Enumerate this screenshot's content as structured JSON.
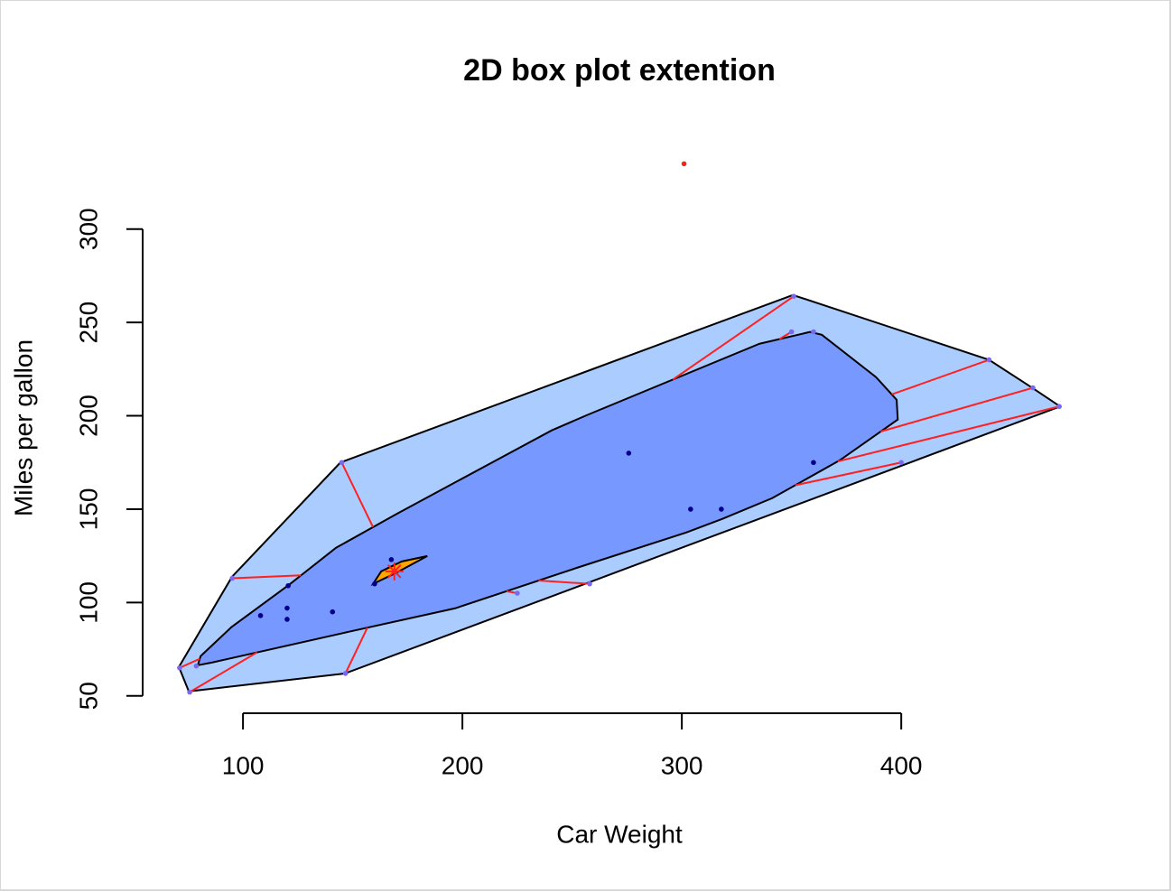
{
  "chart_data": {
    "type": "bagplot",
    "title": "2D box plot extention",
    "x_label": "Car Weight",
    "y_label": "Miles per gallon",
    "xlim": [
      55.1,
      488
    ],
    "ylim": [
      40.7,
      346.3
    ],
    "xticks": [
      100,
      200,
      300,
      400
    ],
    "yticks": [
      50,
      100,
      150,
      200,
      250,
      300
    ],
    "loop_color": "#aaccff",
    "bag_color": "#7799ff",
    "median_color": "#ffa500",
    "line_color": "#ff2020",
    "in_bag_color": "#00008b",
    "in_loop_color": "#7b68ee",
    "outlier_color": "#ff2020",
    "center": {
      "x": 169,
      "y": 116.7
    },
    "loop": {
      "x": [
        70.8,
        75.3,
        146.5,
        472.4,
        459.7,
        440,
        350.6,
        144.4,
        95
      ],
      "y": [
        65.5,
        52.4,
        62,
        205,
        215,
        230,
        264.7,
        175,
        113.8
      ]
    },
    "bag": {
      "x": [
        79.4,
        80.7,
        94.7,
        121,
        142.4,
        170.4,
        240.7,
        256.8,
        335.4,
        358.4,
        363.8,
        388.5,
        397.9,
        398.4,
        372,
        341.2,
        318.5,
        302,
        253.5,
        196.7,
        148.1,
        86
      ],
      "y": [
        66.4,
        71.3,
        86.8,
        109.5,
        129.3,
        147.7,
        192.2,
        200.4,
        238.6,
        244.9,
        243.4,
        220.7,
        208.6,
        198,
        176.2,
        155.9,
        144.8,
        137.5,
        119.1,
        96.9,
        84.3,
        67.9
      ]
    },
    "median_region": {
      "x": [
        159.3,
        163,
        172.4,
        184,
        169.5
      ],
      "y": [
        110,
        116.7,
        122,
        124.9,
        115.7
      ]
    },
    "points_in_bag": {
      "x": [
        167.6,
        160,
        120.6,
        108,
        120.1,
        120.1,
        140.8,
        275.8,
        304,
        318,
        360
      ],
      "y": [
        123,
        110,
        109,
        93,
        97,
        91,
        95,
        180,
        150,
        150,
        175
      ]
    },
    "points_in_loop": {
      "x": [
        71.1,
        75.7,
        78.7,
        146.7,
        472,
        460,
        440,
        351,
        350,
        360,
        400,
        225,
        258,
        145,
        95.1
      ],
      "y": [
        65,
        52,
        66,
        62,
        205,
        215,
        230,
        264,
        245,
        245,
        175,
        105,
        110,
        175,
        113
      ]
    },
    "outliers": {
      "x": [
        301
      ],
      "y": [
        335
      ]
    }
  }
}
